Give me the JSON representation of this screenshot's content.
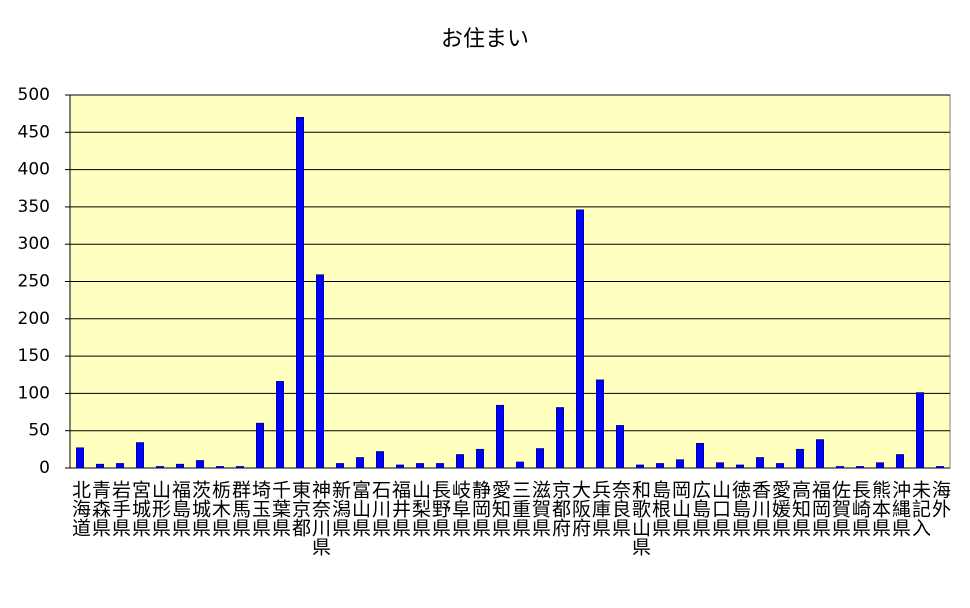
{
  "chart_data": {
    "type": "bar",
    "title": "お住まい",
    "categories": [
      "北海道",
      "青森県",
      "岩手県",
      "宮城県",
      "山形県",
      "福島県",
      "茨城県",
      "栃木県",
      "群馬県",
      "埼玉県",
      "千葉県",
      "東京都",
      "神奈川県",
      "新潟県",
      "富山県",
      "石川県",
      "福井県",
      "山梨県",
      "長野県",
      "岐阜県",
      "静岡県",
      "愛知県",
      "三重県",
      "滋賀県",
      "京都府",
      "大阪府",
      "兵庫県",
      "奈良県",
      "和歌山県",
      "島根県",
      "岡山県",
      "広島県",
      "山口県",
      "徳島県",
      "香川県",
      "愛媛県",
      "高知県",
      "福岡県",
      "佐賀県",
      "長崎県",
      "熊本県",
      "沖縄県",
      "未記入",
      "海外"
    ],
    "values": [
      27,
      5,
      6,
      34,
      2,
      5,
      10,
      2,
      2,
      60,
      116,
      470,
      259,
      6,
      14,
      22,
      4,
      6,
      6,
      18,
      25,
      84,
      8,
      26,
      81,
      346,
      118,
      57,
      4,
      6,
      11,
      33,
      7,
      4,
      14,
      6,
      25,
      38,
      2,
      2,
      7,
      18,
      101,
      2
    ],
    "color": "#0000ff",
    "ylim": [
      0,
      500
    ],
    "yticks": [
      0,
      50,
      100,
      150,
      200,
      250,
      300,
      350,
      400,
      450,
      500
    ],
    "grid": true
  }
}
